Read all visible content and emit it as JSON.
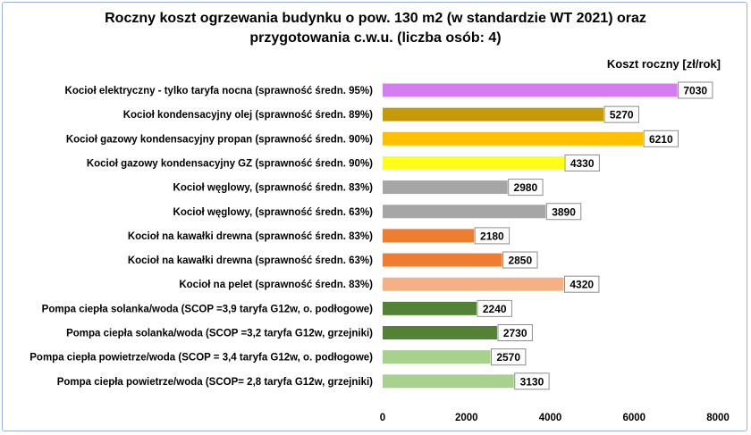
{
  "chart_data": {
    "type": "bar",
    "orientation": "horizontal",
    "title_lines": [
      "Roczny koszt ogrzewania budynku o pow. 130 m2 (w standardzie WT 2021) oraz",
      "przygotowania c.w.u. (liczba osób: 4)"
    ],
    "xlabel": "Koszt roczny [zł/rok]",
    "xlim": [
      0,
      8000
    ],
    "xticks": [
      0,
      2000,
      4000,
      6000,
      8000
    ],
    "grid": false,
    "legend": "none",
    "data_labels": true,
    "categories": [
      "Kocioł elektryczny - tylko taryfa nocna (sprawność średn. 95%)",
      "Kocioł kondensacyjny olej (sprawność średn. 89%)",
      "Kocioł gazowy kondensacyjny propan (sprawność średn. 90%)",
      "Kocioł gazowy kondensacyjny GZ (sprawność średn. 90%)",
      "Kocioł węglowy, (sprawność średn. 83%)",
      "Kocioł węglowy, (sprawność średn. 63%)",
      "Kocioł na kawałki drewna (sprawność średn. 83%)",
      "Kocioł na kawałki drewna (sprawność średn. 63%)",
      "Kocioł na pelet (sprawność średn. 83%)",
      "Pompa ciepła solanka/woda (SCOP =3,9 taryfa G12w, o. podłogowe)",
      "Pompa ciepła solanka/woda (SCOP =3,2 taryfa G12w, grzejniki)",
      "Pompa ciepła powietrze/woda (SCOP = 3,4 taryfa G12w, o. podłogowe)",
      "Pompa ciepła powietrze/woda (SCOP= 2,8 taryfa G12w, grzejniki)"
    ],
    "values": [
      7030,
      5270,
      6210,
      4330,
      2980,
      3890,
      2180,
      2850,
      4320,
      2240,
      2730,
      2570,
      3130
    ],
    "colors": [
      "#d57cf0",
      "#c49a0b",
      "#ffc000",
      "#ffff1a",
      "#a6a6a6",
      "#a6a6a6",
      "#ed7d31",
      "#ed7d31",
      "#f4b183",
      "#548235",
      "#548235",
      "#a9d18e",
      "#a9d18e"
    ]
  }
}
